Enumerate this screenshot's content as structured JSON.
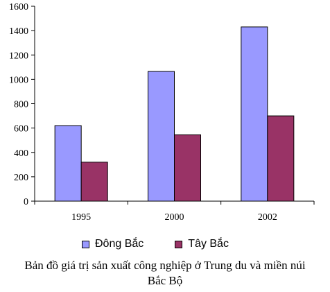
{
  "chart_data": {
    "type": "bar",
    "categories": [
      "1995",
      "2000",
      "2002"
    ],
    "series": [
      {
        "name": "Đông Bắc",
        "values": [
          620,
          1065,
          1430
        ],
        "color": "#9999ff"
      },
      {
        "name": "Tây Bắc",
        "values": [
          320,
          545,
          700
        ],
        "color": "#993366"
      }
    ],
    "yticks": [
      "0",
      "200",
      "400",
      "600",
      "800",
      "1000",
      "1200",
      "1400",
      "1600"
    ],
    "ylim": [
      0,
      1600
    ],
    "title_line1": "Bản đồ giá trị sản xuất công nghiệp ở Trung du và miền núi",
    "title_line2": "Bắc Bộ",
    "legend_position": "bottom",
    "grid": false
  }
}
